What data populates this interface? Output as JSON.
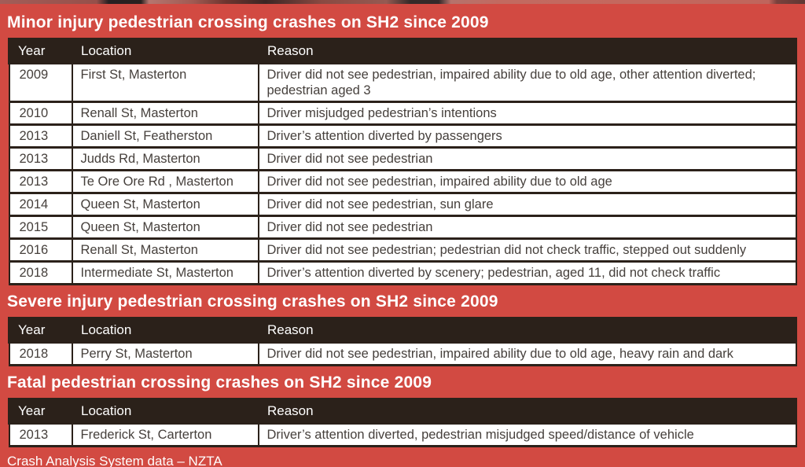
{
  "colors": {
    "background": "#d24a42",
    "header_bar": "#2b211a",
    "row_background": "#ffffff",
    "title_text": "#ffffff",
    "cell_text": "#46403c"
  },
  "chart_data": [
    {
      "type": "table",
      "title": "Minor injury pedestrian crossing crashes on SH2 since 2009",
      "columns": [
        "Year",
        "Location",
        "Reason"
      ],
      "rows": [
        [
          "2009",
          "First St, Masterton",
          "Driver did not see pedestrian, impaired ability due to old age, other attention diverted; pedestrian aged 3"
        ],
        [
          "2010",
          "Renall St, Masterton",
          "Driver misjudged pedestrian’s intentions"
        ],
        [
          "2013",
          "Daniell St, Featherston",
          "Driver’s attention diverted by passengers"
        ],
        [
          "2013",
          "Judds Rd, Masterton",
          "Driver did not see pedestrian"
        ],
        [
          "2013",
          "Te Ore Ore Rd , Masterton",
          "Driver did not see pedestrian, impaired ability due to old age"
        ],
        [
          "2014",
          "Queen St, Masterton",
          "Driver did not see pedestrian, sun glare"
        ],
        [
          "2015",
          "Queen St, Masterton",
          "Driver did not see pedestrian"
        ],
        [
          "2016",
          "Renall St, Masterton",
          "Driver did not see pedestrian; pedestrian did not check traffic, stepped out suddenly"
        ],
        [
          "2018",
          "Intermediate St, Masterton",
          "Driver’s attention diverted by scenery; pedestrian, aged 11, did not check traffic"
        ]
      ]
    },
    {
      "type": "table",
      "title": "Severe injury pedestrian crossing crashes on SH2 since 2009",
      "columns": [
        "Year",
        "Location",
        "Reason"
      ],
      "rows": [
        [
          "2018",
          "Perry St, Masterton",
          "Driver did not see pedestrian, impaired ability due to old age, heavy rain and dark"
        ]
      ]
    },
    {
      "type": "table",
      "title": "Fatal pedestrian crossing crashes on SH2 since 2009",
      "columns": [
        "Year",
        "Location",
        "Reason"
      ],
      "rows": [
        [
          "2013",
          "Frederick St, Carterton",
          "Driver’s attention diverted, pedestrian misjudged speed/distance of vehicle"
        ]
      ]
    }
  ],
  "footer": {
    "source": "Crash Analysis System data – NZTA"
  }
}
